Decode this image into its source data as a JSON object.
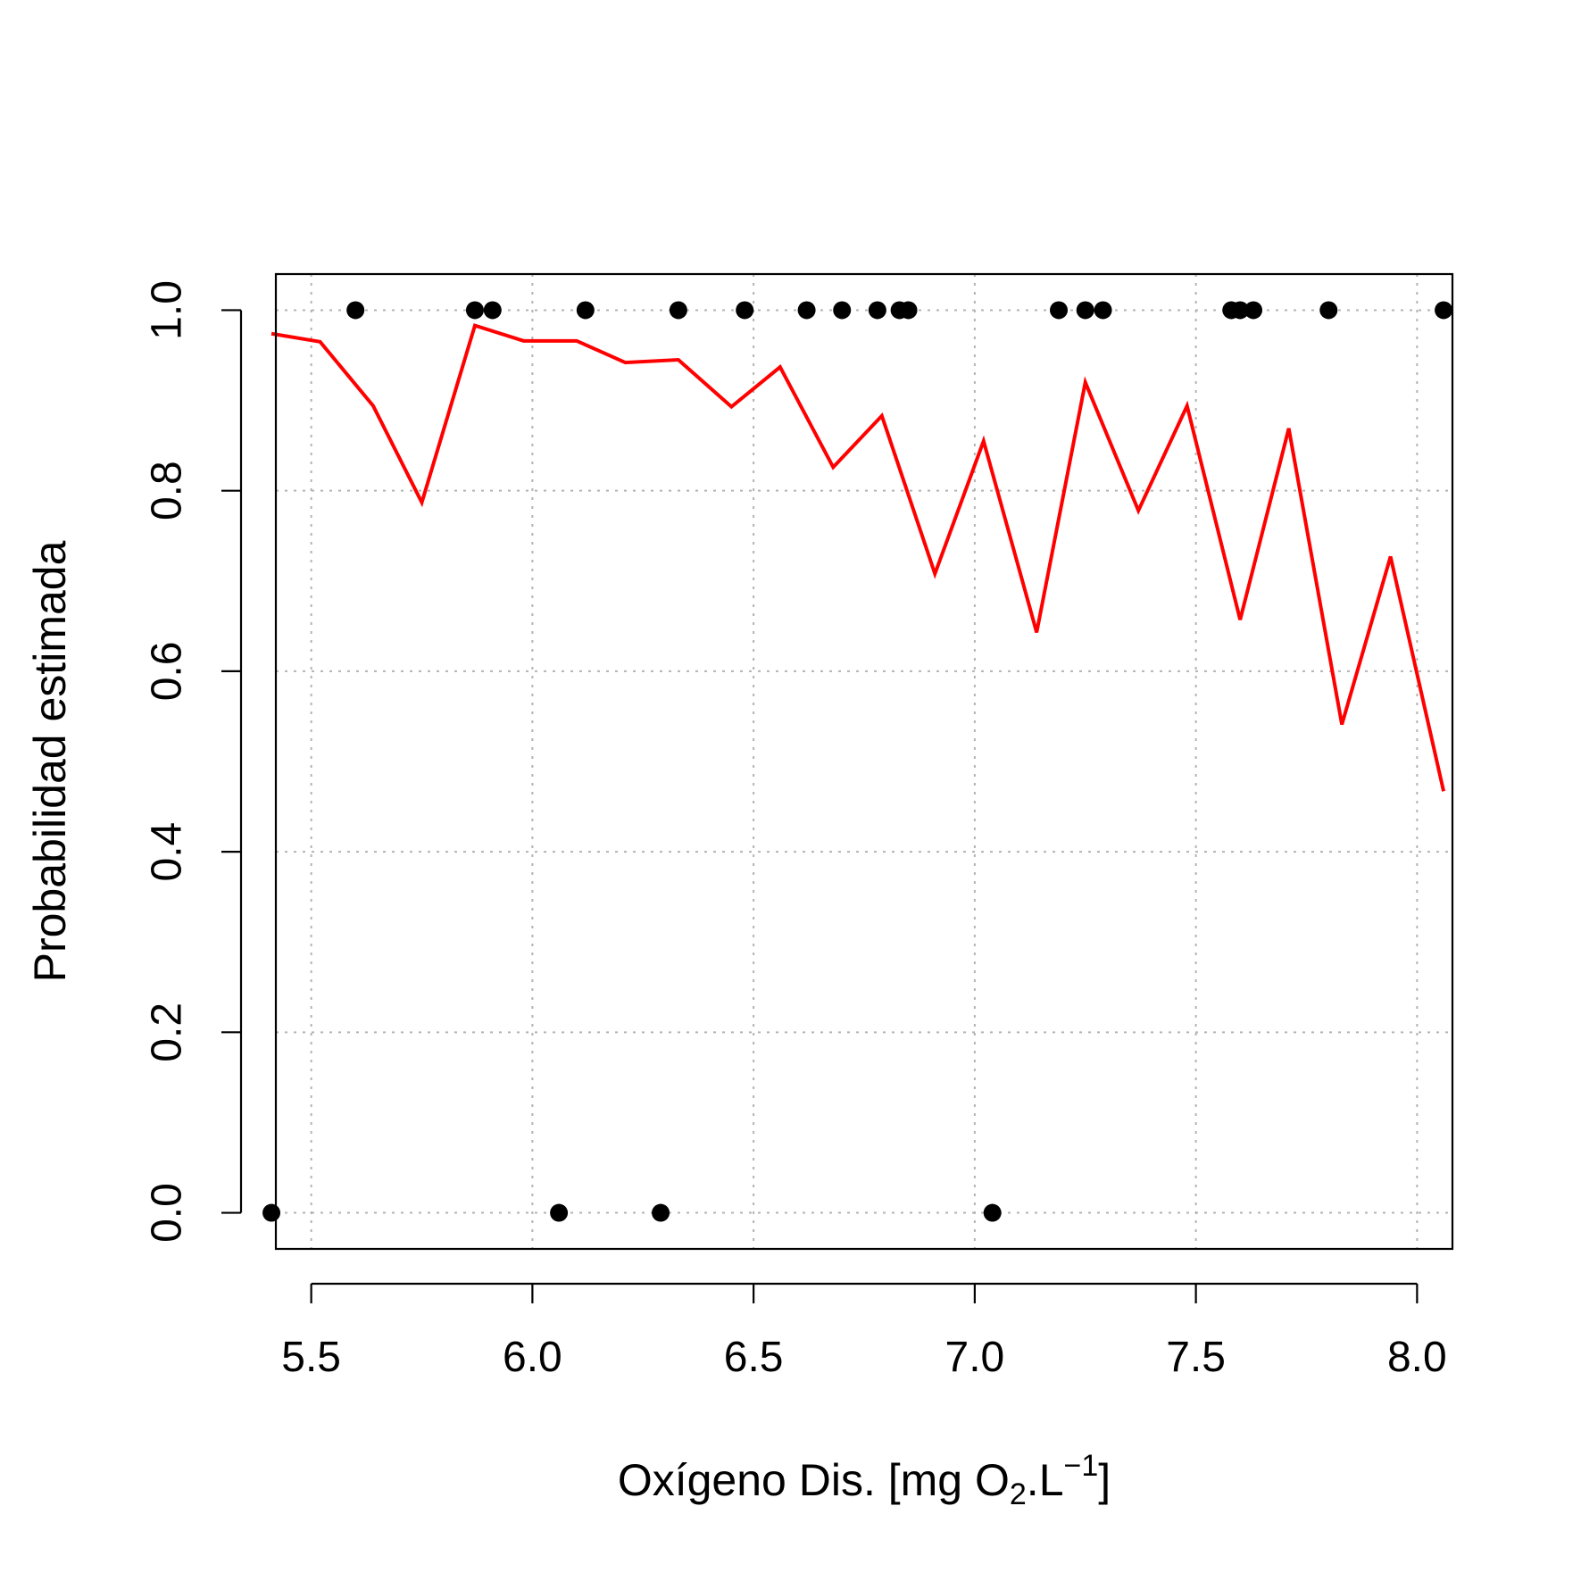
{
  "chart_data": {
    "type": "line",
    "title": "",
    "xlabel": {
      "main": "Oxígeno Dis. [mg O",
      "sub": "2",
      "mid": ".L",
      "sup": "−1",
      "end": "]"
    },
    "ylabel": "Probabilidad estimada",
    "xlim": [
      5.42,
      8.08
    ],
    "ylim": [
      -0.04,
      1.04
    ],
    "x_ticks": [
      5.5,
      6.0,
      6.5,
      7.0,
      7.5,
      8.0
    ],
    "x_tick_labels": [
      "5.5",
      "6.0",
      "6.5",
      "7.0",
      "7.5",
      "8.0"
    ],
    "y_ticks": [
      0.0,
      0.2,
      0.4,
      0.6,
      0.8,
      1.0
    ],
    "y_tick_labels": [
      "0.0",
      "0.2",
      "0.4",
      "0.6",
      "0.8",
      "1.0"
    ],
    "grid": true,
    "colors": {
      "line": "#ff0000",
      "points": "#000000",
      "grid": "#b3b3b3",
      "frame": "#000000"
    },
    "series": [
      {
        "type": "line",
        "x": [
          5.41,
          5.52,
          5.64,
          5.75,
          5.87,
          5.98,
          6.1,
          6.21,
          6.33,
          6.45,
          6.56,
          6.68,
          6.79,
          6.91,
          7.02,
          7.14,
          7.25,
          7.37,
          7.48,
          7.6,
          7.71,
          7.83,
          7.94,
          8.06
        ],
        "y": [
          0.974,
          0.965,
          0.894,
          0.787,
          0.983,
          0.966,
          0.966,
          0.942,
          0.945,
          0.893,
          0.937,
          0.826,
          0.883,
          0.708,
          0.855,
          0.643,
          0.92,
          0.778,
          0.894,
          0.657,
          0.869,
          0.541,
          0.727,
          0.467
        ]
      },
      {
        "type": "scatter",
        "x": [
          5.41,
          5.6,
          5.87,
          5.91,
          6.06,
          6.12,
          6.29,
          6.33,
          6.48,
          6.62,
          6.7,
          6.78,
          6.83,
          6.85,
          7.04,
          7.19,
          7.25,
          7.29,
          7.58,
          7.6,
          7.63,
          7.8,
          8.06
        ],
        "y": [
          0,
          1,
          1,
          1,
          0,
          1,
          0,
          1,
          1,
          1,
          1,
          1,
          1,
          1,
          0,
          1,
          1,
          1,
          1,
          1,
          1,
          1,
          1
        ]
      }
    ]
  }
}
